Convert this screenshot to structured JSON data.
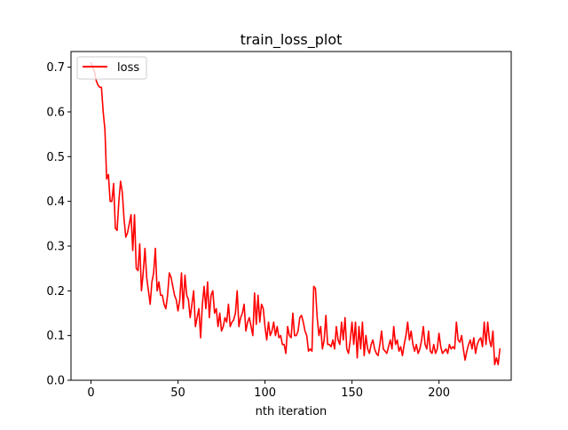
{
  "chart_data": {
    "type": "line",
    "title": "train_loss_plot",
    "xlabel": "nth iteration",
    "ylabel": "",
    "xlim": [
      -11.5,
      241.5
    ],
    "ylim": [
      0.0,
      0.735
    ],
    "x_ticks": [
      0,
      50,
      100,
      150,
      200
    ],
    "y_ticks": [
      0.0,
      0.1,
      0.2,
      0.3,
      0.4,
      0.5,
      0.6,
      0.7
    ],
    "grid": false,
    "legend": {
      "position": "top-left"
    },
    "series": [
      {
        "name": "loss",
        "color": "#ff0000",
        "values": [
          0.71,
          0.7,
          0.69,
          0.67,
          0.66,
          0.655,
          0.655,
          0.6,
          0.56,
          0.45,
          0.46,
          0.4,
          0.4,
          0.44,
          0.34,
          0.335,
          0.4,
          0.445,
          0.42,
          0.36,
          0.32,
          0.33,
          0.35,
          0.37,
          0.29,
          0.37,
          0.25,
          0.245,
          0.305,
          0.2,
          0.24,
          0.295,
          0.23,
          0.2,
          0.17,
          0.22,
          0.24,
          0.295,
          0.2,
          0.22,
          0.19,
          0.19,
          0.17,
          0.16,
          0.19,
          0.24,
          0.23,
          0.21,
          0.19,
          0.18,
          0.155,
          0.18,
          0.24,
          0.16,
          0.235,
          0.19,
          0.18,
          0.14,
          0.17,
          0.2,
          0.12,
          0.14,
          0.16,
          0.095,
          0.17,
          0.21,
          0.16,
          0.22,
          0.14,
          0.19,
          0.2,
          0.15,
          0.16,
          0.12,
          0.15,
          0.11,
          0.12,
          0.14,
          0.13,
          0.17,
          0.12,
          0.13,
          0.135,
          0.15,
          0.2,
          0.12,
          0.14,
          0.15,
          0.17,
          0.11,
          0.13,
          0.14,
          0.12,
          0.1,
          0.195,
          0.125,
          0.19,
          0.13,
          0.17,
          0.16,
          0.12,
          0.09,
          0.13,
          0.1,
          0.11,
          0.13,
          0.1,
          0.12,
          0.095,
          0.1,
          0.08,
          0.08,
          0.06,
          0.12,
          0.1,
          0.095,
          0.15,
          0.1,
          0.1,
          0.11,
          0.14,
          0.145,
          0.13,
          0.11,
          0.1,
          0.065,
          0.07,
          0.065,
          0.21,
          0.205,
          0.14,
          0.1,
          0.12,
          0.07,
          0.09,
          0.145,
          0.08,
          0.08,
          0.075,
          0.09,
          0.07,
          0.12,
          0.09,
          0.08,
          0.13,
          0.09,
          0.14,
          0.07,
          0.06,
          0.09,
          0.13,
          0.08,
          0.13,
          0.05,
          0.12,
          0.07,
          0.13,
          0.055,
          0.1,
          0.07,
          0.06,
          0.08,
          0.09,
          0.07,
          0.06,
          0.055,
          0.08,
          0.11,
          0.07,
          0.065,
          0.06,
          0.075,
          0.09,
          0.07,
          0.12,
          0.08,
          0.09,
          0.065,
          0.075,
          0.055,
          0.08,
          0.1,
          0.13,
          0.09,
          0.11,
          0.08,
          0.065,
          0.08,
          0.06,
          0.07,
          0.09,
          0.12,
          0.08,
          0.07,
          0.11,
          0.065,
          0.06,
          0.08,
          0.06,
          0.07,
          0.105,
          0.075,
          0.06,
          0.065,
          0.07,
          0.06,
          0.08,
          0.07,
          0.075,
          0.07,
          0.13,
          0.09,
          0.085,
          0.1,
          0.07,
          0.045,
          0.065,
          0.08,
          0.09,
          0.07,
          0.095,
          0.06,
          0.08,
          0.09,
          0.095,
          0.075,
          0.13,
          0.08,
          0.13,
          0.09,
          0.075,
          0.11,
          0.035,
          0.05,
          0.035,
          0.07
        ]
      }
    ]
  }
}
